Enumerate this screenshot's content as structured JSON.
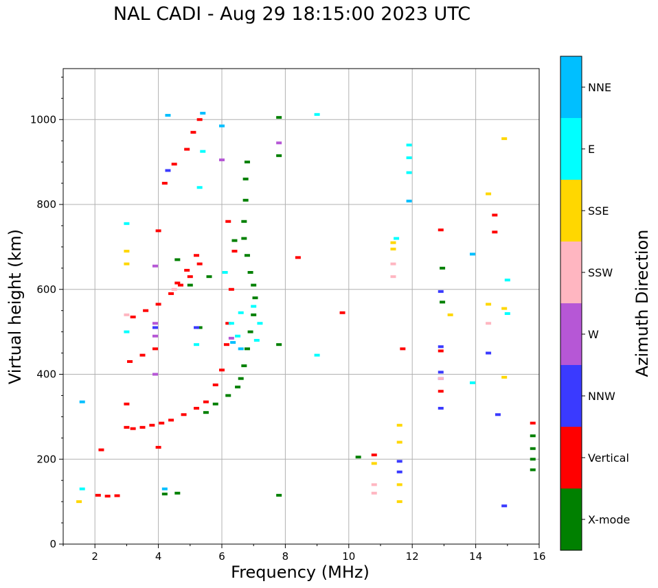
{
  "chart_data": {
    "type": "scatter",
    "title": "NAL CADI - Aug 29 18:15:00 2023 UTC",
    "xlabel": "Frequency (MHz)",
    "ylabel": "Virtual height (km)",
    "xlim": [
      1,
      16
    ],
    "ylim": [
      0,
      1120
    ],
    "x_ticks": [
      2,
      4,
      6,
      8,
      10,
      12,
      14,
      16
    ],
    "y_ticks": [
      0,
      200,
      400,
      600,
      800,
      1000
    ],
    "grid": true,
    "colorbar": {
      "label": "Azimuth Direction",
      "categories": [
        {
          "name": "X-mode",
          "color": "#008000"
        },
        {
          "name": "Vertical",
          "color": "#ff0000"
        },
        {
          "name": "NNW",
          "color": "#3a3aff"
        },
        {
          "name": "W",
          "color": "#b657d6"
        },
        {
          "name": "SSW",
          "color": "#ffb6c1"
        },
        {
          "name": "SSE",
          "color": "#ffd700"
        },
        {
          "name": "E",
          "color": "#00ffff"
        },
        {
          "name": "NNE",
          "color": "#00bfff"
        }
      ]
    },
    "series": [
      {
        "name": "Vertical",
        "color": "#ff0000",
        "points": [
          [
            2.1,
            115
          ],
          [
            2.4,
            113
          ],
          [
            2.7,
            114
          ],
          [
            3.0,
            275
          ],
          [
            3.2,
            272
          ],
          [
            3.5,
            275
          ],
          [
            3.8,
            280
          ],
          [
            4.1,
            285
          ],
          [
            4.4,
            292
          ],
          [
            4.8,
            305
          ],
          [
            5.2,
            320
          ],
          [
            5.5,
            335
          ],
          [
            5.8,
            375
          ],
          [
            6.0,
            410
          ],
          [
            6.15,
            470
          ],
          [
            6.2,
            520
          ],
          [
            6.3,
            600
          ],
          [
            6.4,
            690
          ],
          [
            6.2,
            760
          ],
          [
            3.1,
            430
          ],
          [
            3.5,
            445
          ],
          [
            3.9,
            460
          ],
          [
            3.2,
            535
          ],
          [
            3.6,
            550
          ],
          [
            4.0,
            565
          ],
          [
            4.4,
            590
          ],
          [
            4.7,
            610
          ],
          [
            5.0,
            630
          ],
          [
            5.3,
            660
          ],
          [
            4.6,
            615
          ],
          [
            4.9,
            645
          ],
          [
            5.2,
            680
          ],
          [
            4.2,
            850
          ],
          [
            4.5,
            895
          ],
          [
            4.9,
            930
          ],
          [
            5.1,
            970
          ],
          [
            5.3,
            1000
          ],
          [
            2.2,
            222
          ],
          [
            4.0,
            228
          ],
          [
            3.0,
            330
          ],
          [
            4.0,
            738
          ],
          [
            12.9,
            740
          ],
          [
            12.9,
            455
          ],
          [
            12.9,
            360
          ],
          [
            10.8,
            210
          ],
          [
            15.8,
            285
          ],
          [
            14.6,
            775
          ],
          [
            14.6,
            735
          ],
          [
            9.8,
            545
          ],
          [
            8.4,
            675
          ],
          [
            11.7,
            460
          ]
        ]
      },
      {
        "name": "X-mode",
        "color": "#008000",
        "points": [
          [
            4.2,
            118
          ],
          [
            4.6,
            120
          ],
          [
            5.5,
            310
          ],
          [
            5.8,
            330
          ],
          [
            6.2,
            350
          ],
          [
            6.5,
            370
          ],
          [
            6.6,
            390
          ],
          [
            6.7,
            420
          ],
          [
            6.8,
            460
          ],
          [
            6.9,
            500
          ],
          [
            7.0,
            540
          ],
          [
            7.05,
            580
          ],
          [
            7.0,
            610
          ],
          [
            6.9,
            640
          ],
          [
            6.8,
            680
          ],
          [
            6.7,
            720
          ],
          [
            6.7,
            760
          ],
          [
            6.75,
            810
          ],
          [
            6.75,
            860
          ],
          [
            6.8,
            900
          ],
          [
            5.6,
            630
          ],
          [
            5.3,
            510
          ],
          [
            5.0,
            610
          ],
          [
            4.6,
            670
          ],
          [
            6.4,
            715
          ],
          [
            10.3,
            205
          ],
          [
            12.95,
            650
          ],
          [
            12.95,
            570
          ],
          [
            15.8,
            175
          ],
          [
            15.8,
            200
          ],
          [
            15.8,
            225
          ],
          [
            15.8,
            255
          ],
          [
            7.8,
            470
          ],
          [
            7.8,
            115
          ],
          [
            7.8,
            1005
          ],
          [
            7.8,
            915
          ]
        ]
      },
      {
        "name": "NNW",
        "color": "#3a3aff",
        "points": [
          [
            11.6,
            170
          ],
          [
            11.6,
            195
          ],
          [
            12.9,
            320
          ],
          [
            12.9,
            390
          ],
          [
            12.9,
            405
          ],
          [
            12.9,
            465
          ],
          [
            12.9,
            595
          ],
          [
            14.4,
            450
          ],
          [
            14.9,
            90
          ],
          [
            14.7,
            305
          ],
          [
            5.2,
            510
          ],
          [
            4.3,
            880
          ],
          [
            3.9,
            510
          ]
        ]
      },
      {
        "name": "W",
        "color": "#b657d6",
        "points": [
          [
            3.9,
            520
          ],
          [
            3.9,
            490
          ],
          [
            3.9,
            400
          ],
          [
            3.9,
            655
          ],
          [
            7.8,
            945
          ],
          [
            6.0,
            905
          ],
          [
            6.3,
            485
          ]
        ]
      },
      {
        "name": "SSW",
        "color": "#ffb6c1",
        "points": [
          [
            10.8,
            120
          ],
          [
            10.8,
            140
          ],
          [
            11.4,
            630
          ],
          [
            11.4,
            660
          ],
          [
            12.9,
            390
          ],
          [
            14.4,
            520
          ],
          [
            3.0,
            540
          ],
          [
            4.5,
            600
          ]
        ]
      },
      {
        "name": "SSE",
        "color": "#ffd700",
        "points": [
          [
            11.6,
            100
          ],
          [
            11.6,
            140
          ],
          [
            11.6,
            240
          ],
          [
            11.6,
            280
          ],
          [
            10.8,
            190
          ],
          [
            11.4,
            695
          ],
          [
            11.4,
            710
          ],
          [
            3.0,
            690
          ],
          [
            3.0,
            660
          ],
          [
            14.4,
            825
          ],
          [
            14.4,
            565
          ],
          [
            14.9,
            555
          ],
          [
            14.9,
            955
          ],
          [
            13.2,
            540
          ],
          [
            14.9,
            393
          ],
          [
            1.5,
            100
          ]
        ]
      },
      {
        "name": "E",
        "color": "#00ffff",
        "points": [
          [
            6.1,
            640
          ],
          [
            6.3,
            520
          ],
          [
            6.5,
            490
          ],
          [
            6.6,
            545
          ],
          [
            7.1,
            480
          ],
          [
            7.2,
            520
          ],
          [
            7.0,
            560
          ],
          [
            5.2,
            470
          ],
          [
            5.3,
            840
          ],
          [
            5.4,
            925
          ],
          [
            9.0,
            445
          ],
          [
            9.0,
            1012
          ],
          [
            11.9,
            875
          ],
          [
            11.9,
            910
          ],
          [
            11.9,
            940
          ],
          [
            15.0,
            622
          ],
          [
            15.0,
            543
          ],
          [
            13.9,
            380
          ],
          [
            11.5,
            720
          ],
          [
            3.0,
            755
          ],
          [
            3.0,
            500
          ],
          [
            1.6,
            130
          ]
        ]
      },
      {
        "name": "NNE",
        "color": "#00bfff",
        "points": [
          [
            6.35,
            475
          ],
          [
            6.6,
            460
          ],
          [
            6.0,
            985
          ],
          [
            11.9,
            808
          ],
          [
            13.9,
            683
          ],
          [
            5.4,
            1015
          ],
          [
            4.3,
            1010
          ],
          [
            1.6,
            335
          ],
          [
            4.2,
            130
          ]
        ]
      }
    ]
  }
}
